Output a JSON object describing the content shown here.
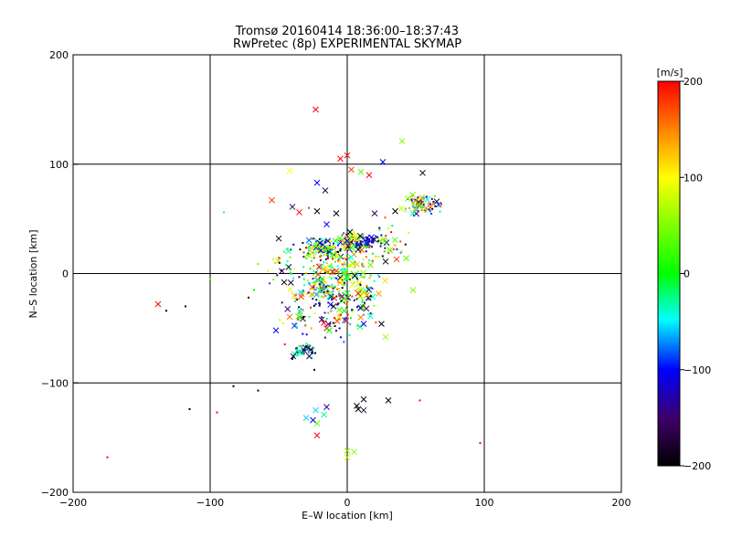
{
  "chart_data": {
    "type": "scatter",
    "title": "Tromsø 20160414 18:36:00–18:37:43",
    "subtitle": "RwPretec (8p) EXPERIMENTAL SKYMAP",
    "xlabel": "E–W location [km]",
    "ylabel": "N–S location [km]",
    "xlim": [
      -200,
      200
    ],
    "ylim": [
      -200,
      200
    ],
    "xticks": [
      -200,
      -100,
      0,
      100,
      200
    ],
    "yticks": [
      -200,
      -100,
      0,
      100,
      200
    ],
    "grid": true,
    "colorbar": {
      "label": "[m/s]",
      "range": [
        -200,
        200
      ],
      "ticks": [
        200,
        100,
        0,
        -100,
        -200
      ],
      "colors": [
        "#000000",
        "#3d0066",
        "#0000ff",
        "#00ffff",
        "#00ff00",
        "#ffff00",
        "#ff8800",
        "#ff0000"
      ]
    },
    "x_markers": [
      {
        "x": -23,
        "y": 150,
        "v": 200
      },
      {
        "x": -5,
        "y": 105,
        "v": 200
      },
      {
        "x": 0,
        "y": 108,
        "v": 200
      },
      {
        "x": 3,
        "y": 95,
        "v": 180
      },
      {
        "x": 10,
        "y": 93,
        "v": 30
      },
      {
        "x": 16,
        "y": 90,
        "v": 200
      },
      {
        "x": 26,
        "y": 102,
        "v": -100
      },
      {
        "x": 40,
        "y": 121,
        "v": 50
      },
      {
        "x": -42,
        "y": 94,
        "v": 100
      },
      {
        "x": -22,
        "y": 83,
        "v": -100
      },
      {
        "x": -16,
        "y": 76,
        "v": -160
      },
      {
        "x": 55,
        "y": 92,
        "v": -200
      },
      {
        "x": -55,
        "y": 67,
        "v": 180
      },
      {
        "x": -40,
        "y": 61,
        "v": -160
      },
      {
        "x": -35,
        "y": 56,
        "v": 200
      },
      {
        "x": -22,
        "y": 57,
        "v": -200
      },
      {
        "x": -8,
        "y": 55,
        "v": -200
      },
      {
        "x": 20,
        "y": 55,
        "v": -160
      },
      {
        "x": 35,
        "y": 57,
        "v": -200
      },
      {
        "x": -15,
        "y": 45,
        "v": -100
      },
      {
        "x": -50,
        "y": 32,
        "v": -200
      },
      {
        "x": 28,
        "y": 11,
        "v": -200
      },
      {
        "x": 36,
        "y": 13,
        "v": 180
      },
      {
        "x": 43,
        "y": 14,
        "v": 30
      },
      {
        "x": -138,
        "y": -28,
        "v": 200
      },
      {
        "x": -52,
        "y": -52,
        "v": -100
      },
      {
        "x": -46,
        "y": -8,
        "v": -200
      },
      {
        "x": 48,
        "y": -15,
        "v": 50
      },
      {
        "x": 25,
        "y": -46,
        "v": -200
      },
      {
        "x": 28,
        "y": -58,
        "v": 60
      },
      {
        "x": -13,
        "y": -52,
        "v": 0
      },
      {
        "x": 12,
        "y": -46,
        "v": -100
      },
      {
        "x": 14,
        "y": -32,
        "v": -160
      },
      {
        "x": -35,
        "y": -72,
        "v": -30
      },
      {
        "x": -30,
        "y": -132,
        "v": -60
      },
      {
        "x": -25,
        "y": -134,
        "v": -100
      },
      {
        "x": -22,
        "y": -137,
        "v": 30
      },
      {
        "x": -17,
        "y": -129,
        "v": -30
      },
      {
        "x": -23,
        "y": -125,
        "v": -60
      },
      {
        "x": -15,
        "y": -122,
        "v": -130
      },
      {
        "x": -22,
        "y": -148,
        "v": 200
      },
      {
        "x": 12,
        "y": -115,
        "v": -200
      },
      {
        "x": 7,
        "y": -121,
        "v": -200
      },
      {
        "x": 8,
        "y": -124,
        "v": -200
      },
      {
        "x": 12,
        "y": -125,
        "v": -160
      },
      {
        "x": 30,
        "y": -116,
        "v": -200
      },
      {
        "x": 0,
        "y": -162,
        "v": 50
      },
      {
        "x": 5,
        "y": -163,
        "v": 50
      },
      {
        "x": 0,
        "y": -168,
        "v": 80
      },
      {
        "x": 8,
        "y": 22,
        "v": -200
      },
      {
        "x": -10,
        "y": -30,
        "v": -200
      },
      {
        "x": 2,
        "y": 38,
        "v": -200
      },
      {
        "x": 0,
        "y": -18,
        "v": 0
      }
    ],
    "dot_markers": [
      {
        "x": -175,
        "y": -168,
        "v": 200
      },
      {
        "x": 97,
        "y": -155,
        "v": 200
      },
      {
        "x": 53,
        "y": -116,
        "v": 200
      },
      {
        "x": -115,
        "y": -124,
        "v": -200
      },
      {
        "x": -95,
        "y": -127,
        "v": 200
      },
      {
        "x": -83,
        "y": -103,
        "v": -200
      },
      {
        "x": -65,
        "y": -107,
        "v": -200
      },
      {
        "x": -132,
        "y": -34,
        "v": -200
      },
      {
        "x": -118,
        "y": -30,
        "v": -200
      },
      {
        "x": -100,
        "y": -5,
        "v": 30
      },
      {
        "x": -90,
        "y": 56,
        "v": -30
      },
      {
        "x": -72,
        "y": -22,
        "v": -200
      },
      {
        "x": -68,
        "y": -15,
        "v": 0
      },
      {
        "x": -28,
        "y": 60,
        "v": 180
      },
      {
        "x": -12,
        "y": 18,
        "v": 0
      },
      {
        "x": -18,
        "y": -5,
        "v": 0
      },
      {
        "x": 8,
        "y": 2,
        "v": 60
      },
      {
        "x": -24,
        "y": -88,
        "v": -200
      },
      {
        "x": -40,
        "y": -78,
        "v": -200
      }
    ],
    "clusters": [
      {
        "cx": -18,
        "cy": 22,
        "sx": 10,
        "sy": 6,
        "n": 130,
        "vmin": -200,
        "vmax": 200
      },
      {
        "cx": 5,
        "cy": 28,
        "sx": 8,
        "sy": 6,
        "n": 90,
        "vmin": -200,
        "vmax": 200
      },
      {
        "cx": 15,
        "cy": 30,
        "sx": 5,
        "sy": 4,
        "n": 35,
        "vmin": -200,
        "vmax": -80
      },
      {
        "cx": -5,
        "cy": 5,
        "sx": 15,
        "sy": 8,
        "n": 100,
        "vmin": -60,
        "vmax": 200
      },
      {
        "cx": -15,
        "cy": -15,
        "sx": 9,
        "sy": 9,
        "n": 120,
        "vmin": -200,
        "vmax": 200
      },
      {
        "cx": 10,
        "cy": -20,
        "sx": 9,
        "sy": 12,
        "n": 70,
        "vmin": -200,
        "vmax": 200
      },
      {
        "cx": -32,
        "cy": -70,
        "sx": 5,
        "sy": 4,
        "n": 45,
        "vmin": -200,
        "vmax": 0
      },
      {
        "cx": 55,
        "cy": 63,
        "sx": 7,
        "sy": 5,
        "n": 85,
        "vmin": -200,
        "vmax": 200
      },
      {
        "cx": -30,
        "cy": -30,
        "sx": 12,
        "sy": 18,
        "n": 55,
        "vmin": -200,
        "vmax": 200
      },
      {
        "cx": 30,
        "cy": 25,
        "sx": 10,
        "sy": 12,
        "n": 35,
        "vmin": -200,
        "vmax": 200
      },
      {
        "cx": -45,
        "cy": 5,
        "sx": 10,
        "sy": 10,
        "n": 30,
        "vmin": -200,
        "vmax": 200
      },
      {
        "cx": -5,
        "cy": -45,
        "sx": 10,
        "sy": 10,
        "n": 35,
        "vmin": -200,
        "vmax": 200
      }
    ]
  }
}
